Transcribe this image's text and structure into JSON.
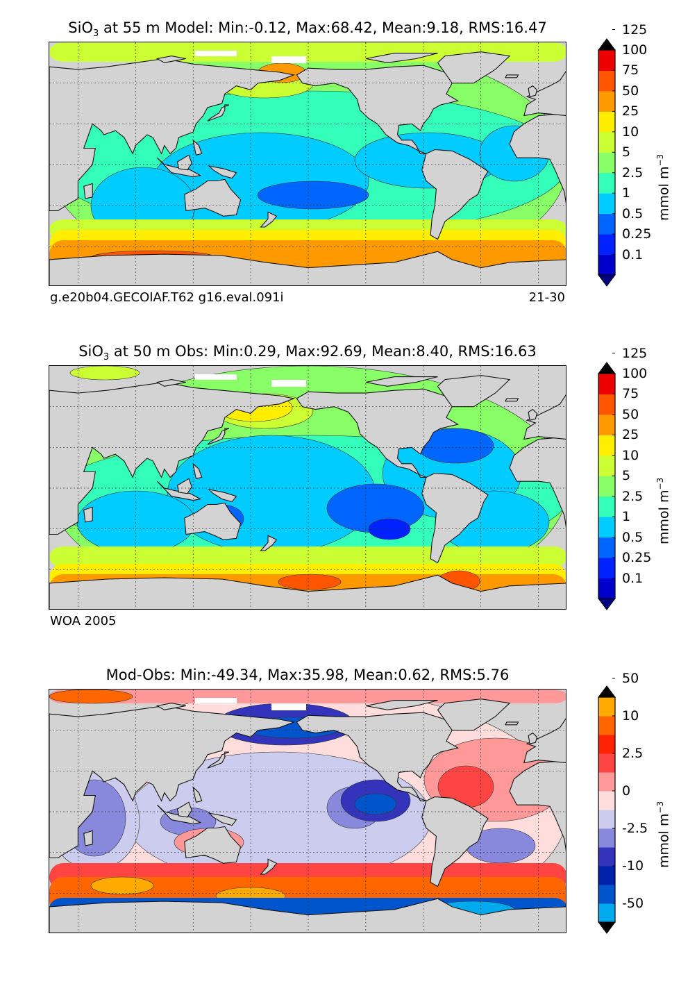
{
  "panels": [
    {
      "title_pre": "SiO",
      "title_sub": "3",
      "title_post": " at 55 m Model: Min:-0.12, Max:68.42, Mean:9.18, RMS:16.47",
      "footer_left": "g.e20b04.GECOIAF.T62 g16.eval.091i",
      "footer_right": "21-30",
      "unit_main": "mmol m",
      "unit_sup": "−3",
      "colorbar": {
        "levels": [
          "0.1",
          "0.25",
          "0.5",
          "1",
          "2.5",
          "5",
          "10",
          "25",
          "50",
          "75",
          "100",
          "125"
        ],
        "colors": [
          "#000080",
          "#0000cd",
          "#0022ff",
          "#0066ff",
          "#00ccff",
          "#33ffbb",
          "#88ff66",
          "#ccff33",
          "#ffee00",
          "#ff9900",
          "#ff5500",
          "#ee0000",
          "#880000"
        ],
        "arrow_low": "#000080",
        "arrow_high": "#000000"
      }
    },
    {
      "title_pre": "SiO",
      "title_sub": "3",
      "title_post": " at 50 m Obs: Min:0.29, Max:92.69, Mean:8.40, RMS:16.63",
      "footer_left": "WOA 2005",
      "footer_right": "",
      "unit_main": "mmol m",
      "unit_sup": "−3",
      "colorbar": {
        "levels": [
          "0.1",
          "0.25",
          "0.5",
          "1",
          "2.5",
          "5",
          "10",
          "25",
          "50",
          "75",
          "100",
          "125"
        ],
        "colors": [
          "#000080",
          "#0000cd",
          "#0022ff",
          "#0066ff",
          "#00ccff",
          "#33ffbb",
          "#88ff66",
          "#ccff33",
          "#ffee00",
          "#ff9900",
          "#ff5500",
          "#ee0000",
          "#880000"
        ],
        "arrow_low": "#000080",
        "arrow_high": "#000000"
      }
    },
    {
      "title_pre": "Mod-Obs: Min:-49.34, Max:35.98, Mean:0.62, RMS:5.76",
      "title_sub": "",
      "title_post": "",
      "footer_left": "",
      "footer_right": "",
      "unit_main": "mmol m",
      "unit_sup": "−3",
      "colorbar": {
        "levels": [
          "-50",
          "",
          "-10",
          "",
          "-2.5",
          "",
          "0",
          "",
          "2.5",
          "",
          "10",
          "",
          "50"
        ],
        "colors": [
          "#00ffff",
          "#00aaee",
          "#0055cc",
          "#0022aa",
          "#3333bb",
          "#8888dd",
          "#ccccee",
          "#ffdddd",
          "#ff9999",
          "#ff4444",
          "#ff2200",
          "#ff6600",
          "#ffaa00",
          "#ffff00"
        ],
        "arrow_low": "#000000",
        "arrow_high": "#000000"
      }
    }
  ]
}
